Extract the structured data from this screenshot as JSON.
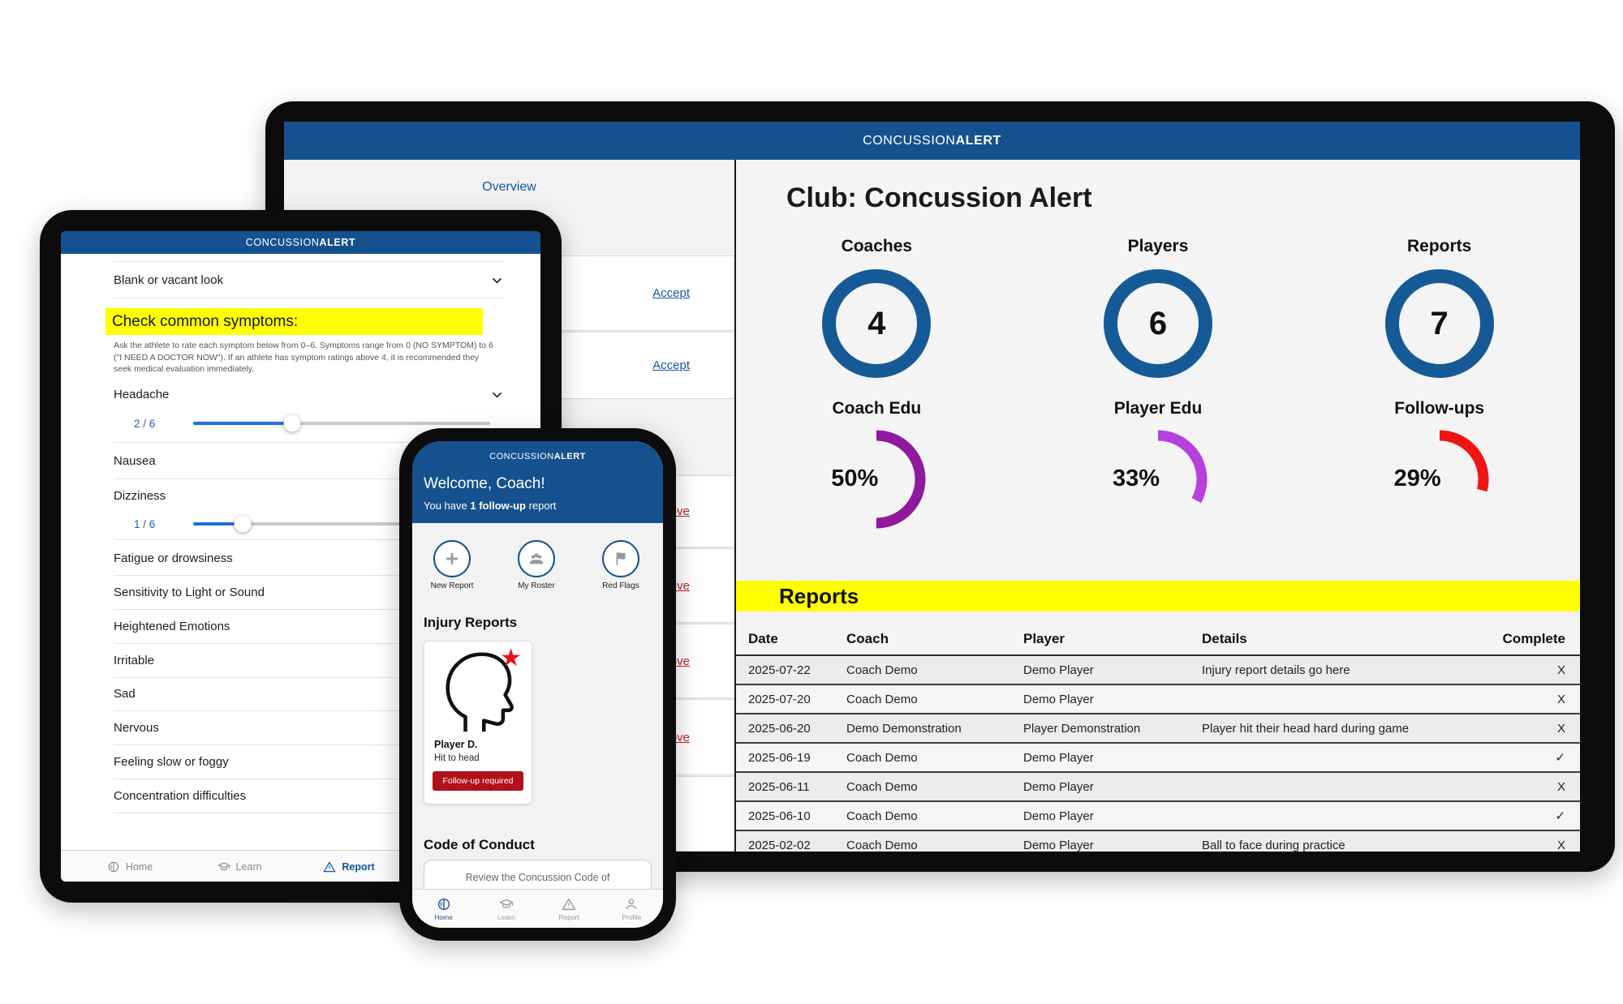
{
  "brand": {
    "prefix": "CONCUSSION",
    "suffix": "ALERT"
  },
  "colors": {
    "brand_blue": "#15518e",
    "highlight_yellow": "#ffff00",
    "stat_circle_blue": "#155a96",
    "coach_edu_purple": "#8f1a9e",
    "player_edu_purple": "#b640dd",
    "followups_red": "#f21414",
    "link_blue": "#1557a6",
    "remove_red": "#c22127",
    "slider_blue": "#1e6fe0",
    "badge_red": "#b0111a",
    "star_red": "#e8101c"
  },
  "desktop": {
    "overview_link": "Overview",
    "pending": {
      "accept": [
        "Accept",
        "Accept"
      ],
      "remove": [
        "Remove",
        "Remove",
        "Remove",
        "Remove"
      ]
    },
    "title": "Club: Concussion Alert",
    "stats": [
      {
        "label": "Coaches",
        "value": "4"
      },
      {
        "label": "Players",
        "value": "6"
      },
      {
        "label": "Reports",
        "value": "7"
      }
    ],
    "progress": [
      {
        "label": "Coach Edu",
        "percent": "50%",
        "value": 50,
        "color": "#8f1a9e"
      },
      {
        "label": "Player Edu",
        "percent": "33%",
        "value": 33,
        "color": "#b640dd"
      },
      {
        "label": "Follow-ups",
        "percent": "29%",
        "value": 29,
        "color": "#f21414"
      }
    ],
    "reports": {
      "heading": "Reports",
      "columns": [
        "Date",
        "Coach",
        "Player",
        "Details",
        "Complete"
      ],
      "rows": [
        {
          "date": "2025-07-22",
          "coach": "Coach Demo",
          "player": "Demo Player",
          "details": "Injury report details go here",
          "complete": "X"
        },
        {
          "date": "2025-07-20",
          "coach": "Coach Demo",
          "player": "Demo Player",
          "details": "",
          "complete": "X"
        },
        {
          "date": "2025-06-20",
          "coach": "Demo Demonstration",
          "player": "Player Demonstration",
          "details": "Player hit their head hard during game",
          "complete": "X"
        },
        {
          "date": "2025-06-19",
          "coach": "Coach Demo",
          "player": "Demo Player",
          "details": "",
          "complete": "✓"
        },
        {
          "date": "2025-06-11",
          "coach": "Coach Demo",
          "player": "Demo Player",
          "details": "",
          "complete": "X"
        },
        {
          "date": "2025-06-10",
          "coach": "Coach Demo",
          "player": "Demo Player",
          "details": "",
          "complete": "✓"
        },
        {
          "date": "2025-02-02",
          "coach": "Coach Demo",
          "player": "Demo Player",
          "details": "Ball to face during practice",
          "complete": "X"
        }
      ]
    }
  },
  "tablet": {
    "collapsed_row": "Blank or vacant look",
    "symptoms_heading": "Check common symptoms:",
    "instructions": "Ask the athlete to rate each symptom below from 0–6. Symptoms range from 0 (NO SYMPTOM) to 6 (\"I NEED A DOCTOR NOW\"). If an athlete has symptom ratings above 4, it is recommended they seek medical evaluation immediately.",
    "headache": {
      "name": "Headache",
      "display": "2  /  6",
      "value": 2,
      "max": 6
    },
    "nausea": "Nausea",
    "dizziness": {
      "name": "Dizziness",
      "display": "1  /  6",
      "value": 1,
      "max": 6
    },
    "symptoms": [
      "Fatigue or drowsiness",
      "Sensitivity to Light or Sound",
      "Heightened Emotions",
      "Irritable",
      "Sad",
      "Nervous",
      "Feeling slow or foggy",
      "Concentration difficulties"
    ],
    "nav": [
      {
        "label": "Home"
      },
      {
        "label": "Learn"
      },
      {
        "label": "Report"
      }
    ]
  },
  "phone": {
    "welcome": "Welcome, Coach!",
    "followup_line": {
      "pre": "You have ",
      "bold": "1 follow-up",
      "post": " report"
    },
    "quick_actions": [
      {
        "label": "New Report"
      },
      {
        "label": "My Roster"
      },
      {
        "label": "Red Flags"
      }
    ],
    "injury_heading": "Injury Reports",
    "injury_card": {
      "player": "Player D.",
      "detail": "Hit to head",
      "badge": "Follow-up required"
    },
    "conduct_heading": "Code of Conduct",
    "conduct_text": "Review the Concussion Code of",
    "nav": [
      {
        "label": "Home"
      },
      {
        "label": "Learn"
      },
      {
        "label": "Report"
      },
      {
        "label": "Profile"
      }
    ]
  }
}
